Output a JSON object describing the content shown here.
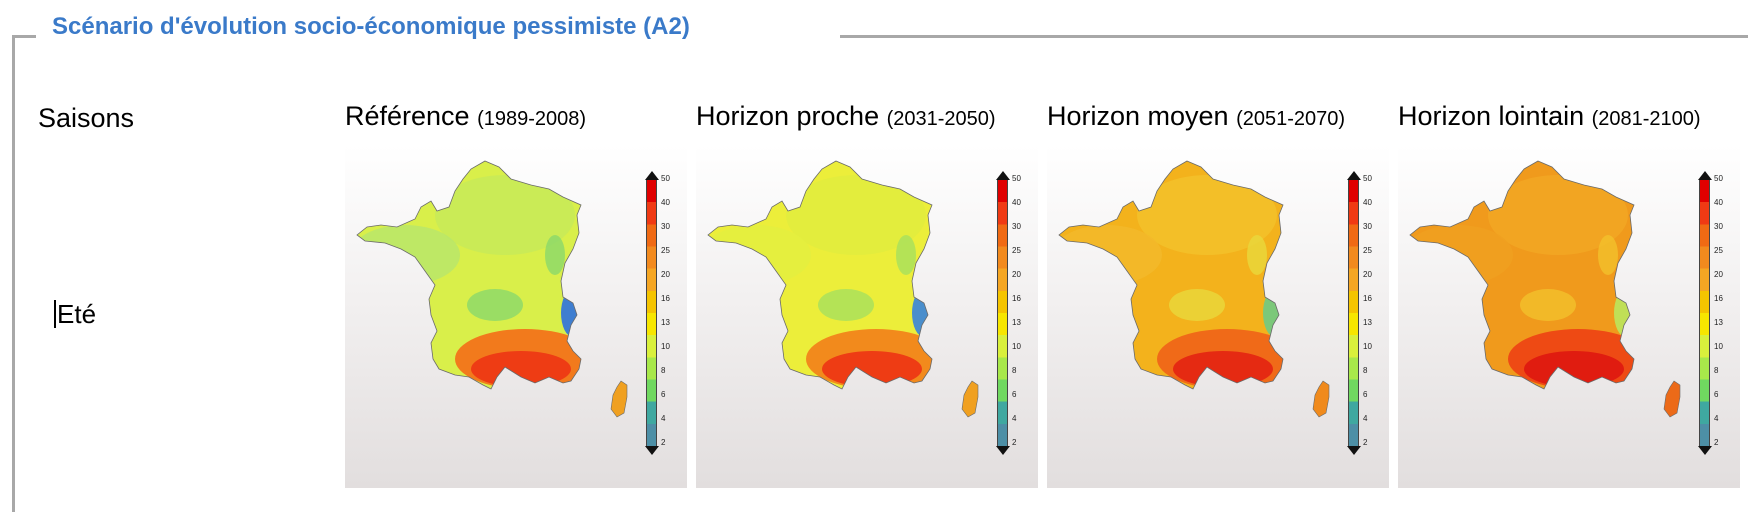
{
  "legend": "Scénario d'évolution socio-économique pessimiste (A2)",
  "row_header": "Saisons",
  "season": "Eté",
  "colorbar_ticks": [
    "50",
    "40",
    "30",
    "25",
    "20",
    "16",
    "13",
    "10",
    "8",
    "6",
    "4",
    "2"
  ],
  "colorbar_colors": [
    "#e00000",
    "#f03a14",
    "#f06a14",
    "#f28a1e",
    "#f5a623",
    "#f5c400",
    "#f7e600",
    "#d9f03c",
    "#a8e84a",
    "#70d860",
    "#3fa8a0",
    "#4d8fa6"
  ],
  "columns": [
    {
      "title": "Référence",
      "period": "(1989-2008)",
      "level": 0
    },
    {
      "title": "Horizon proche",
      "period": "(2031-2050)",
      "level": 1
    },
    {
      "title": "Horizon moyen",
      "period": "(2051-2070)",
      "level": 2
    },
    {
      "title": "Horizon lointain",
      "period": "(2081-2100)",
      "level": 3
    }
  ],
  "map_colors": {
    "base": [
      "#d9ef4a",
      "#ecee3a",
      "#f3b21c",
      "#f09a1c"
    ],
    "north": [
      "#c8ea58",
      "#e2ec3e",
      "#f3c02a",
      "#f2a623"
    ],
    "west": [
      "#b8e66a",
      "#e4ee40",
      "#f2b82a",
      "#f0a020"
    ],
    "patch": [
      "#8ad86a",
      "#a6e05e",
      "#e9d83c",
      "#f3c02c"
    ],
    "alps": [
      "#3f7ed0",
      "#4a8ecc",
      "#7cc87a",
      "#c0df56"
    ],
    "south": [
      "#ee3c14",
      "#ee3c14",
      "#e52a12",
      "#e01c10"
    ],
    "south2": [
      "#f27a1c",
      "#f28a1c",
      "#f06a18",
      "#ee4a14"
    ],
    "corse": [
      "#f0a020",
      "#f0a020",
      "#f08a1c",
      "#ec6a18"
    ]
  }
}
